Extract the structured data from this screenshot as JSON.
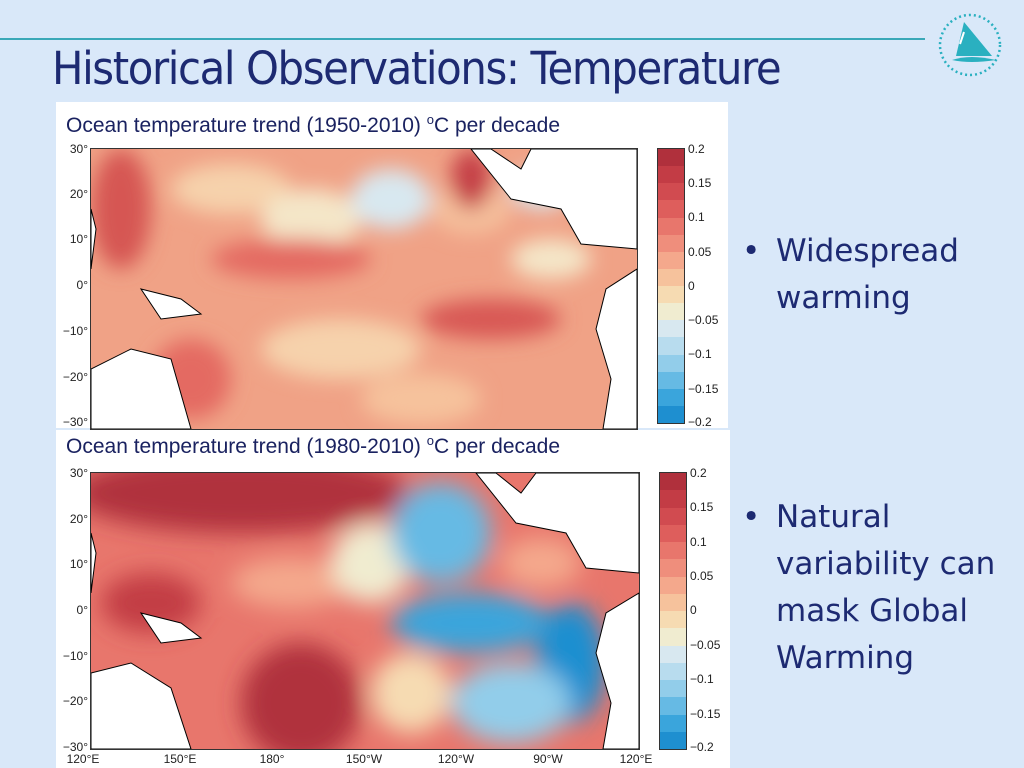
{
  "slide": {
    "title": "Historical Observations: Temperature",
    "logo": "ocean sailboat logo"
  },
  "panels": [
    {
      "caption_pre": "Ocean temperature trend (1950-2010) ",
      "caption_sup": "o",
      "caption_post": "C per decade",
      "lat_labels": [
        "30°",
        "20°",
        "10°",
        "0°",
        "−10°",
        "−20°",
        "−30°"
      ],
      "colorbar_labels": [
        "0.2",
        "0.15",
        "0.1",
        "0.05",
        "0",
        "−0.05",
        "−0.1",
        "−0.15",
        "−0.2"
      ]
    },
    {
      "caption_pre": "Ocean temperature trend (1980-2010) ",
      "caption_sup": "o",
      "caption_post": "C per decade",
      "lat_labels": [
        "30°",
        "20°",
        "10°",
        "0°",
        "−10°",
        "−20°",
        "−30°"
      ],
      "lon_labels": [
        "120°E",
        "150°E",
        "180°",
        "150°W",
        "120°W",
        "90°W",
        "120°E"
      ],
      "colorbar_labels": [
        "0.2",
        "0.15",
        "0.1",
        "0.05",
        "0",
        "−0.05",
        "−0.1",
        "−0.15",
        "−0.2"
      ]
    }
  ],
  "colorbar_colors": [
    "#b0303c",
    "#c33c45",
    "#d14b50",
    "#de5e5c",
    "#e8766c",
    "#ef8e7c",
    "#f4a88c",
    "#f6c29c",
    "#f6dbb2",
    "#f0ecd0",
    "#d8e8f0",
    "#b8dcee",
    "#92cdea",
    "#66bae4",
    "#3aa5dc",
    "#1e8fd0"
  ],
  "bullets": [
    {
      "text": "Widespread warming"
    },
    {
      "text": "Natural variability can mask Global Warming"
    }
  ]
}
